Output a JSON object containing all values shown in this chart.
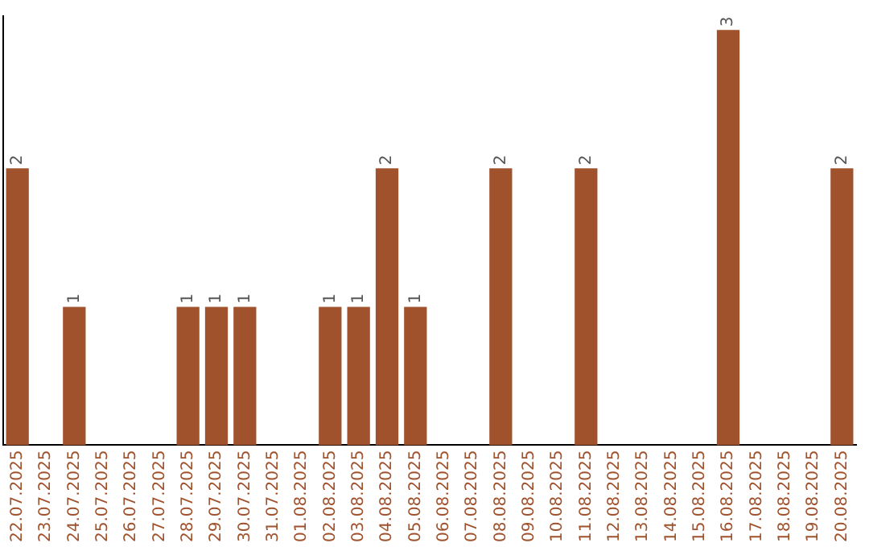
{
  "chart_data": {
    "type": "bar",
    "categories": [
      "22.07.2025",
      "23.07.2025",
      "24.07.2025",
      "25.07.2025",
      "26.07.2025",
      "27.07.2025",
      "28.07.2025",
      "29.07.2025",
      "30.07.2025",
      "31.07.2025",
      "01.08.2025",
      "02.08.2025",
      "03.08.2025",
      "04.08.2025",
      "05.08.2025",
      "06.08.2025",
      "07.08.2025",
      "08.08.2025",
      "09.08.2025",
      "10.08.2025",
      "11.08.2025",
      "12.08.2025",
      "13.08.2025",
      "14.08.2025",
      "15.08.2025",
      "16.08.2025",
      "17.08.2025",
      "18.08.2025",
      "19.08.2025",
      "20.08.2025"
    ],
    "values": [
      2,
      0,
      1,
      0,
      0,
      0,
      1,
      1,
      1,
      0,
      0,
      1,
      1,
      2,
      1,
      0,
      0,
      2,
      0,
      0,
      2,
      0,
      0,
      0,
      0,
      3,
      0,
      0,
      0,
      2
    ],
    "value_labels": [
      "2",
      null,
      "1",
      null,
      null,
      null,
      "1",
      "1",
      "1",
      null,
      null,
      "1",
      "1",
      "2",
      "1",
      null,
      null,
      "2",
      null,
      null,
      "2",
      null,
      null,
      null,
      null,
      "3",
      null,
      null,
      null,
      "2"
    ],
    "color": "#a0522d",
    "ylim": [
      0,
      3.1
    ],
    "tick_labels": "x",
    "grid": false,
    "legend": false
  }
}
